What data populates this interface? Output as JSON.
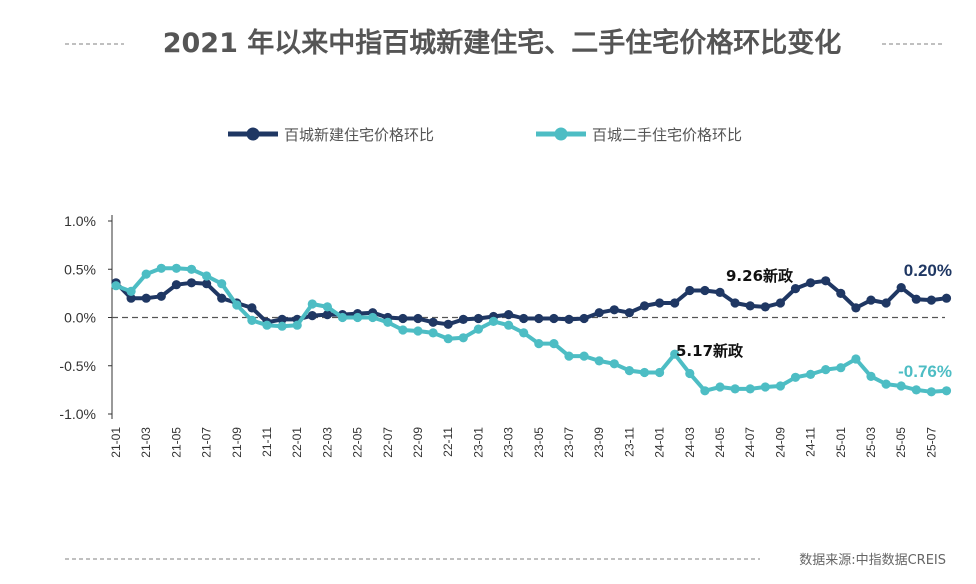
{
  "colors": {
    "new_home": "#1f3763",
    "second_hand": "#4dbdc4",
    "text": "#555555",
    "zero_line": "#555555"
  },
  "chart_data": {
    "type": "line",
    "title": "2021 年以来中指百城新建住宅、二手住宅价格环比变化",
    "ylim": [
      -1.0,
      1.0
    ],
    "y_ticks": [
      "1.0%",
      "0.5%",
      "0.0%",
      "-0.5%",
      "-1.0%"
    ],
    "y_tick_values": [
      1.0,
      0.5,
      0.0,
      -0.5,
      -1.0
    ],
    "x_tick_labels": [
      "21-01",
      "21-03",
      "21-05",
      "21-07",
      "21-09",
      "21-11",
      "22-01",
      "22-03",
      "22-05",
      "22-07",
      "22-09",
      "22-11",
      "23-01",
      "23-03",
      "23-05",
      "23-07",
      "23-09",
      "23-11",
      "24-01",
      "24-03",
      "24-05",
      "24-07",
      "24-09",
      "24-11",
      "25-01",
      "25-03",
      "25-05",
      "25-07"
    ],
    "x": [
      "21-01",
      "21-02",
      "21-03",
      "21-04",
      "21-05",
      "21-06",
      "21-07",
      "21-08",
      "21-09",
      "21-10",
      "21-11",
      "21-12",
      "22-01",
      "22-02",
      "22-03",
      "22-04",
      "22-05",
      "22-06",
      "22-07",
      "22-08",
      "22-09",
      "22-10",
      "22-11",
      "22-12",
      "23-01",
      "23-02",
      "23-03",
      "23-04",
      "23-05",
      "23-06",
      "23-07",
      "23-08",
      "23-09",
      "23-10",
      "23-11",
      "23-12",
      "24-01",
      "24-02",
      "24-03",
      "24-04",
      "24-05",
      "24-06",
      "24-07",
      "24-08",
      "24-09",
      "24-10",
      "24-11",
      "24-12",
      "25-01",
      "25-02",
      "25-03",
      "25-04",
      "25-05",
      "25-06",
      "25-07",
      "25-08"
    ],
    "series": [
      {
        "name": "百城新建住宅价格环比",
        "values": [
          0.36,
          0.2,
          0.2,
          0.22,
          0.34,
          0.36,
          0.35,
          0.2,
          0.15,
          0.1,
          -0.05,
          -0.02,
          -0.02,
          0.02,
          0.03,
          0.03,
          0.04,
          0.05,
          0.0,
          -0.01,
          -0.01,
          -0.05,
          -0.07,
          -0.02,
          -0.01,
          0.01,
          0.03,
          -0.01,
          -0.01,
          -0.01,
          -0.02,
          -0.01,
          0.05,
          0.08,
          0.05,
          0.12,
          0.15,
          0.15,
          0.28,
          0.28,
          0.26,
          0.15,
          0.12,
          0.11,
          0.15,
          0.3,
          0.36,
          0.38,
          0.25,
          0.1,
          0.18,
          0.15,
          0.31,
          0.19,
          0.18,
          0.2
        ]
      },
      {
        "name": "百城二手住宅价格环比",
        "values": [
          0.33,
          0.27,
          0.45,
          0.51,
          0.51,
          0.5,
          0.43,
          0.35,
          0.13,
          -0.03,
          -0.08,
          -0.09,
          -0.08,
          0.14,
          0.11,
          0.0,
          0.0,
          0.0,
          -0.05,
          -0.13,
          -0.14,
          -0.16,
          -0.22,
          -0.21,
          -0.12,
          -0.04,
          -0.08,
          -0.16,
          -0.27,
          -0.27,
          -0.4,
          -0.4,
          -0.45,
          -0.48,
          -0.55,
          -0.57,
          -0.57,
          -0.38,
          -0.58,
          -0.76,
          -0.72,
          -0.74,
          -0.74,
          -0.72,
          -0.71,
          -0.62,
          -0.59,
          -0.54,
          -0.52,
          -0.43,
          -0.61,
          -0.69,
          -0.71,
          -0.75,
          -0.77,
          -0.76
        ]
      }
    ],
    "legend_position": "top",
    "annotations": [
      {
        "text": "9.26新政",
        "x": "24-09"
      },
      {
        "text": "5.17新政",
        "x": "24-05"
      }
    ],
    "end_labels": [
      "0.20%",
      "-0.76%"
    ],
    "zero_line": "dashed",
    "grid": false
  },
  "footer": {
    "source": "数据来源:中指数据CREIS"
  }
}
